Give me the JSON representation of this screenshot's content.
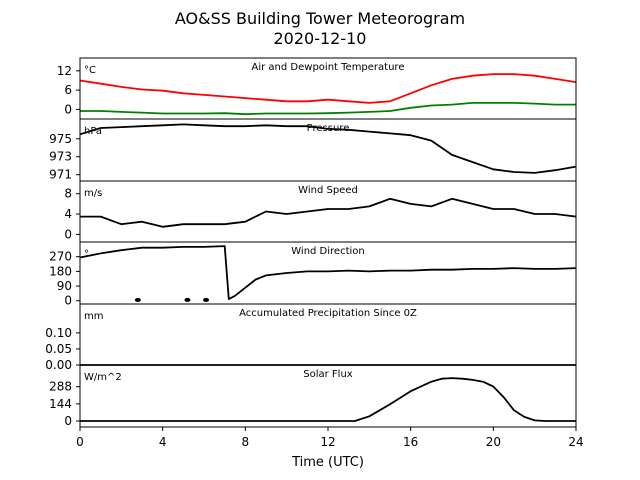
{
  "chart_data": {
    "type": "line",
    "title": "AO&SS Building Tower Meteorogram",
    "subtitle": "2020-12-10",
    "xlabel": "Time (UTC)",
    "xlim": [
      0,
      24
    ],
    "xticks": [
      "0",
      "4",
      "8",
      "12",
      "16",
      "20",
      "24"
    ],
    "panels": [
      {
        "name": "Air and Dewpoint Temperature",
        "unit": "°C",
        "ylim": [
          -3,
          16
        ],
        "yticks": [
          "12",
          "6",
          "0"
        ],
        "series": [
          {
            "color": "#ff0000",
            "x": [
              0,
              1,
              2,
              3,
              4,
              5,
              6,
              7,
              8,
              9,
              10,
              11,
              12,
              13,
              14,
              15,
              16,
              17,
              18,
              19,
              20,
              21,
              22,
              23,
              24
            ],
            "y": [
              9,
              8,
              7,
              6.2,
              5.8,
              5,
              4.5,
              4,
              3.5,
              3,
              2.5,
              2.5,
              3,
              2.5,
              2,
              2.5,
              5,
              7.5,
              9.5,
              10.5,
              11,
              11,
              10.5,
              9.5,
              8.5
            ]
          },
          {
            "color": "#008000",
            "x": [
              0,
              1,
              2,
              3,
              4,
              5,
              6,
              7,
              8,
              9,
              10,
              11,
              12,
              13,
              14,
              15,
              16,
              17,
              18,
              19,
              20,
              21,
              22,
              23,
              24
            ],
            "y": [
              -0.5,
              -0.5,
              -0.8,
              -1,
              -1.3,
              -1.3,
              -1.3,
              -1.2,
              -1.5,
              -1.3,
              -1.3,
              -1.3,
              -1.2,
              -1,
              -0.8,
              -0.5,
              0.5,
              1.2,
              1.5,
              2,
              2,
              2,
              1.8,
              1.5,
              1.5
            ]
          }
        ]
      },
      {
        "name": "Pressure",
        "unit": "hPa",
        "ylim": [
          970.3,
          977.2
        ],
        "yticks": [
          "975",
          "973",
          "971"
        ],
        "series": [
          {
            "color": "#000000",
            "x": [
              0,
              1,
              2,
              3,
              4,
              5,
              6,
              7,
              8,
              9,
              10,
              11,
              12,
              13,
              14,
              15,
              16,
              17,
              18,
              19,
              20,
              21,
              22,
              23,
              24
            ],
            "y": [
              975.5,
              976.2,
              976.3,
              976.4,
              976.5,
              976.6,
              976.5,
              976.4,
              976.4,
              976.5,
              976.4,
              976.4,
              976.1,
              976.0,
              975.8,
              975.6,
              975.4,
              974.8,
              973.2,
              972.4,
              971.6,
              971.3,
              971.2,
              971.5,
              971.9
            ]
          }
        ]
      },
      {
        "name": "Wind Speed",
        "unit": "m/s",
        "ylim": [
          -1.5,
          10.5
        ],
        "yticks": [
          "8",
          "4",
          "0"
        ],
        "series": [
          {
            "color": "#000000",
            "x": [
              0,
              1,
              2,
              3,
              4,
              5,
              6,
              7,
              8,
              9,
              10,
              11,
              12,
              13,
              14,
              15,
              16,
              17,
              18,
              19,
              20,
              21,
              22,
              23,
              24
            ],
            "y": [
              3.5,
              3.5,
              2,
              2.5,
              1.5,
              2,
              2,
              2,
              2.5,
              4.5,
              4,
              4.5,
              5,
              5,
              5.5,
              7,
              6,
              5.5,
              7,
              6,
              5,
              5,
              4,
              4,
              3.5
            ]
          }
        ]
      },
      {
        "name": "Wind Direction",
        "unit": "°",
        "ylim": [
          -20,
          360
        ],
        "yticks": [
          "270",
          "180",
          "90",
          "0"
        ],
        "series": [
          {
            "color": "#000000",
            "x": [
              0,
              1,
              2,
              3,
              4,
              5,
              6,
              7,
              7.2,
              7.5,
              8,
              8.5,
              9,
              10,
              11,
              12,
              13,
              14,
              15,
              16,
              17,
              18,
              19,
              20,
              21,
              22,
              23,
              24
            ],
            "y": [
              265,
              290,
              310,
              325,
              325,
              330,
              330,
              335,
              10,
              30,
              80,
              130,
              155,
              170,
              180,
              180,
              185,
              180,
              185,
              185,
              190,
              190,
              195,
              195,
              200,
              195,
              195,
              200
            ]
          },
          {
            "color": "#000000",
            "markers": true,
            "x": [
              2.8,
              5.2,
              6.1
            ],
            "y": [
              5,
              5,
              5
            ]
          }
        ]
      },
      {
        "name": "Accumulated Precipitation Since 0Z",
        "unit": "mm",
        "ylim": [
          0,
          0.19
        ],
        "yticks": [
          "0.10",
          "0.05",
          "0.00"
        ],
        "series": [
          {
            "color": "#000000",
            "x": [
              0,
              24
            ],
            "y": [
              0,
              0
            ]
          }
        ]
      },
      {
        "name": "Solar Flux",
        "unit": "W/m^2",
        "ylim": [
          -50,
          470
        ],
        "yticks": [
          "288",
          "144",
          "0"
        ],
        "series": [
          {
            "color": "#000000",
            "x": [
              0,
              13.3,
              14,
              15,
              16,
              17,
              17.5,
              18,
              18.5,
              19,
              19.5,
              20,
              20.5,
              21,
              21.5,
              22,
              22.5,
              23,
              24
            ],
            "y": [
              0,
              0,
              40,
              140,
              250,
              330,
              355,
              360,
              355,
              345,
              330,
              290,
              200,
              90,
              35,
              5,
              0,
              0,
              0
            ]
          }
        ]
      }
    ]
  }
}
